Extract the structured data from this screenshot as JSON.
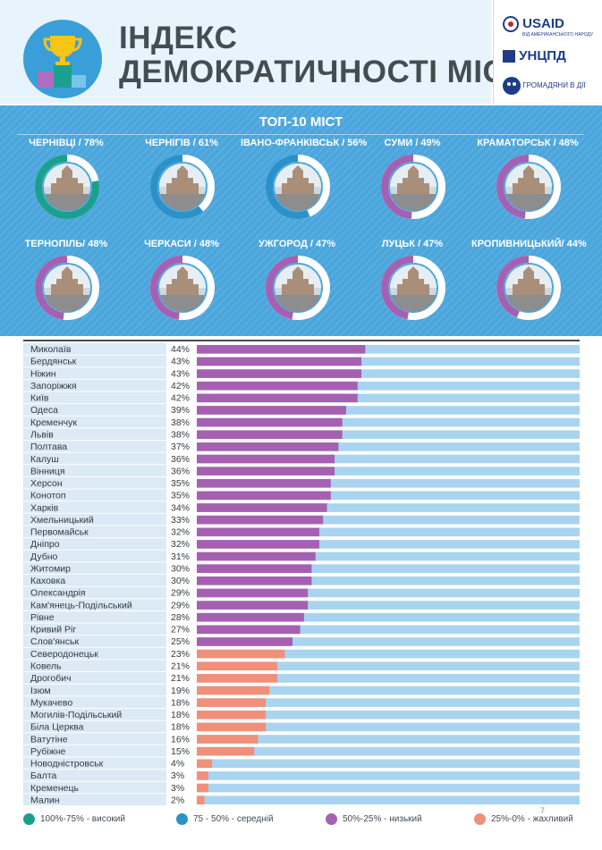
{
  "header": {
    "title_line1": "ІНДЕКС",
    "title_line2": "ДЕМОКРАТИЧНОСТІ МІСТ",
    "logo_usaid": "USAID",
    "logo_usaid_sub": "ВІД АМЕРИКАНСЬКОГО НАРОДУ",
    "logo_uncpd": "УНЦПД",
    "logo_grom": "ГРОМАДЯНИ В ДІЇ"
  },
  "top10": {
    "title": "ТОП-10 МІСТ",
    "cities": [
      {
        "label": "ЧЕРНІВЦІ / 78%",
        "value": 78,
        "color": "#1ba08f"
      },
      {
        "label": "ЧЕРНІГІВ / 61%",
        "value": 61,
        "color": "#2b91c9"
      },
      {
        "label": "ІВАНО-ФРАНКІВСЬК / 56%",
        "value": 56,
        "color": "#2b91c9"
      },
      {
        "label": "СУМИ / 49%",
        "value": 49,
        "color": "#a660b1"
      },
      {
        "label": "КРАМАТОРСЬК / 48%",
        "value": 48,
        "color": "#a660b1"
      },
      {
        "label": "ТЕРНОПІЛЬ/ 48%",
        "value": 48,
        "color": "#a660b1"
      },
      {
        "label": "ЧЕРКАСИ / 48%",
        "value": 48,
        "color": "#a660b1"
      },
      {
        "label": "УЖГОРОД / 47%",
        "value": 47,
        "color": "#a660b1"
      },
      {
        "label": "ЛУЦЬК / 47%",
        "value": 47,
        "color": "#a660b1"
      },
      {
        "label": "КРОПИВНИЦЬКИЙ/ 44%",
        "value": 44,
        "color": "#a660b1"
      }
    ]
  },
  "chart_data": {
    "type": "bar",
    "orientation": "horizontal",
    "xlim": [
      0,
      100
    ],
    "unit": "%",
    "categories": [
      "Миколаїв",
      "Бердянськ",
      "Ніжин",
      "Запоріжжя",
      "Київ",
      "Одеса",
      "Кременчук",
      "Львів",
      "Полтава",
      "Калуш",
      "Вінниця",
      "Херсон",
      "Конотоп",
      "Харків",
      "Хмельницький",
      "Первомайськ",
      "Дніпро",
      "Дубно",
      "Житомир",
      "Каховка",
      "Олександрія",
      "Кам'янець-Подільський",
      "Рівне",
      "Кривий Ріг",
      "Слов'янськ",
      "Северодонецьк",
      "Ковель",
      "Дрогобич",
      "Ізюм",
      "Мукачево",
      "Могилів-Подільський",
      "Біла Церква",
      "Ватутіне",
      "Рубіжне",
      "Новодністровськ",
      "Балта",
      "Кременець",
      "Малин"
    ],
    "values": [
      44,
      43,
      43,
      42,
      42,
      39,
      38,
      38,
      37,
      36,
      36,
      35,
      35,
      34,
      33,
      32,
      32,
      31,
      30,
      30,
      29,
      29,
      28,
      27,
      25,
      23,
      21,
      21,
      19,
      18,
      18,
      18,
      16,
      15,
      4,
      3,
      3,
      2
    ],
    "value_labels": [
      "44%",
      "43%",
      "43%",
      "42%",
      "42%",
      "39%",
      "38%",
      "38%",
      "37%",
      "36%",
      "36%",
      "35%",
      "35%",
      "34%",
      "33%",
      "32%",
      "32%",
      "31%",
      "30%",
      "30%",
      "29%",
      "29%",
      "28%",
      "27%",
      "25%",
      "23%",
      "21%",
      "21%",
      "19%",
      "18%",
      "18%",
      "18%",
      "16%",
      "15%",
      "4%",
      "3%",
      "3%",
      "2%"
    ]
  },
  "colors": {
    "high": "#1ba08f",
    "medium": "#2b91c9",
    "low": "#a660b1",
    "bad": "#f0907a",
    "track": "#a9d4ef",
    "name_bg": "#dbeaf5"
  },
  "legend": [
    {
      "label": "100%-75% - високий",
      "color": "#1ba08f"
    },
    {
      "label": "75 - 50% - середній",
      "color": "#2b91c9"
    },
    {
      "label": "50%-25% - низький",
      "color": "#a660b1"
    },
    {
      "label": "25%-0% - жахливий",
      "color": "#f0907a"
    }
  ],
  "page_number": "7"
}
